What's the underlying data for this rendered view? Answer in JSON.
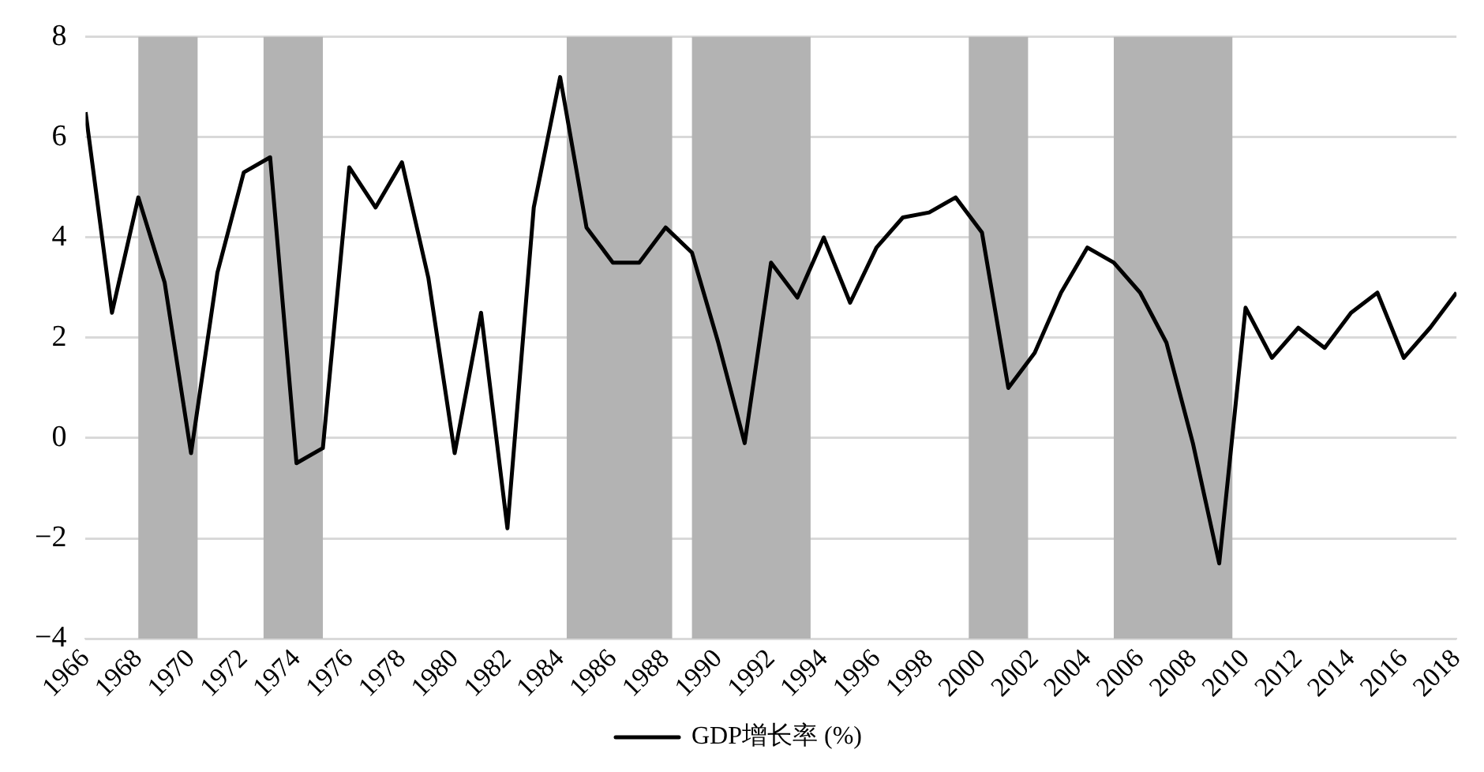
{
  "chart_data": {
    "type": "line",
    "x": [
      1966,
      1967,
      1968,
      1969,
      1970,
      1971,
      1972,
      1973,
      1974,
      1975,
      1976,
      1977,
      1978,
      1979,
      1980,
      1981,
      1982,
      1983,
      1984,
      1985,
      1986,
      1987,
      1988,
      1989,
      1990,
      1991,
      1992,
      1993,
      1994,
      1995,
      1996,
      1997,
      1998,
      1999,
      2000,
      2001,
      2002,
      2003,
      2004,
      2005,
      2006,
      2007,
      2008,
      2009,
      2010,
      2011,
      2012,
      2013,
      2014,
      2015,
      2016,
      2017,
      2018
    ],
    "series": [
      {
        "name": "GDP增长率 (%)",
        "color": "#000000",
        "values": [
          6.5,
          2.5,
          4.8,
          3.1,
          -0.3,
          3.3,
          5.3,
          5.6,
          -0.5,
          -0.2,
          5.4,
          4.6,
          5.5,
          3.2,
          -0.3,
          2.5,
          -1.8,
          4.6,
          7.2,
          4.2,
          3.5,
          3.5,
          4.2,
          3.7,
          1.9,
          -0.1,
          3.5,
          2.8,
          4.0,
          2.7,
          3.8,
          4.4,
          4.5,
          4.8,
          4.1,
          1.0,
          1.7,
          2.9,
          3.8,
          3.5,
          2.9,
          1.9,
          -0.1,
          -2.5,
          2.6,
          1.6,
          2.2,
          1.8,
          2.5,
          2.9,
          1.6,
          2.2,
          2.9
        ]
      }
    ],
    "xlim": [
      1966,
      2018
    ],
    "xticks": [
      1966,
      1968,
      1970,
      1972,
      1974,
      1976,
      1978,
      1980,
      1982,
      1984,
      1986,
      1988,
      1990,
      1992,
      1994,
      1996,
      1998,
      2000,
      2002,
      2004,
      2006,
      2008,
      2010,
      2012,
      2014,
      2016,
      2018
    ],
    "ylim": [
      -4,
      8
    ],
    "yticks": [
      -4,
      -2,
      0,
      2,
      4,
      6,
      8
    ],
    "grid": "y",
    "legend": "bottom",
    "marker": "none",
    "line_style": "solid",
    "bands": [
      {
        "axis": "x",
        "from": 1968,
        "to": 1970.25,
        "color": "#b3b3b3"
      },
      {
        "axis": "x",
        "from": 1972.75,
        "to": 1975,
        "color": "#b3b3b3"
      },
      {
        "axis": "x",
        "from": 1984.25,
        "to": 1988.25,
        "color": "#b3b3b3"
      },
      {
        "axis": "x",
        "from": 1989,
        "to": 1993.5,
        "color": "#b3b3b3"
      },
      {
        "axis": "x",
        "from": 1999.5,
        "to": 2001.75,
        "color": "#b3b3b3"
      },
      {
        "axis": "x",
        "from": 2005,
        "to": 2009.5,
        "color": "#b3b3b3"
      }
    ]
  }
}
